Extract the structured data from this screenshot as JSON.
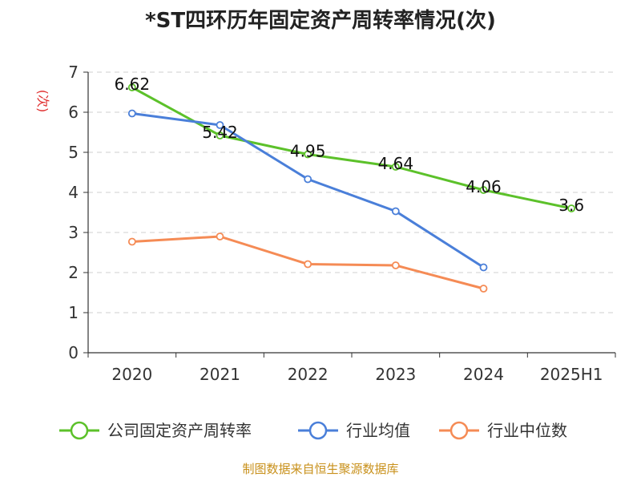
{
  "chart_data": {
    "type": "line",
    "title": "*ST四环历年固定资产周转率情况(次)",
    "ylabel": "(次)",
    "categories": [
      "2020",
      "2021",
      "2022",
      "2023",
      "2024",
      "2025H1"
    ],
    "ylim": [
      0,
      7
    ],
    "yticks": [
      0,
      1,
      2,
      3,
      4,
      5,
      6,
      7
    ],
    "grid": "horizontal-dashed",
    "legend_position": "bottom",
    "series": [
      {
        "name": "公司固定资产周转率",
        "color": "#5cc12a",
        "values": [
          6.62,
          5.42,
          4.95,
          4.64,
          4.06,
          3.6
        ],
        "labels": [
          "6.62",
          "5.42",
          "4.95",
          "4.64",
          "4.06",
          "3.6"
        ]
      },
      {
        "name": "行业均值",
        "color": "#4a7fd9",
        "values": [
          5.97,
          5.68,
          4.33,
          3.53,
          2.13,
          null
        ]
      },
      {
        "name": "行业中位数",
        "color": "#f58b55",
        "values": [
          2.77,
          2.9,
          2.21,
          2.18,
          1.6,
          null
        ]
      }
    ],
    "source": "制图数据来自恒生聚源数据库"
  }
}
